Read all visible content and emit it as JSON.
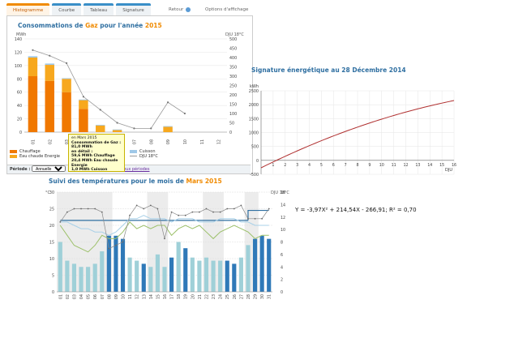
{
  "tabs": [
    "Histogramme",
    "Courbe",
    "Tableau",
    "Signature"
  ],
  "top_links": {
    "retour": "Retour",
    "options": "Options d'affichage"
  },
  "gas": {
    "title_pre": "Consommations de ",
    "title_accent": "Gaz",
    "title_mid": " pour l'année ",
    "title_year": "2015",
    "unit_left": "MWh",
    "unit_right": "DJU 18°C",
    "months": [
      "01",
      "02",
      "03",
      "04",
      "05",
      "06",
      "07",
      "08",
      "09",
      "10",
      "11",
      "12"
    ],
    "chauffage": [
      84,
      77,
      60,
      35,
      0,
      0,
      0,
      0,
      0,
      0,
      0,
      0
    ],
    "eau_chaude": [
      28,
      24,
      20,
      13,
      10,
      3,
      0,
      0,
      8,
      0,
      0,
      0
    ],
    "cuisson": [
      2,
      2,
      1,
      1,
      1,
      1,
      0,
      0,
      1,
      0,
      0,
      0
    ],
    "dju": [
      440,
      410,
      370,
      190,
      120,
      50,
      20,
      20,
      160,
      100,
      null,
      null
    ],
    "yleft_ticks": [
      "0",
      "20",
      "40",
      "60",
      "80",
      "100",
      "120",
      "140"
    ],
    "yright_ticks": [
      "0",
      "50",
      "100",
      "150",
      "200",
      "250",
      "300",
      "350",
      "400",
      "450",
      "500"
    ],
    "legend": {
      "chauffage": "Chauffage",
      "eau": "Eau chaude Energie",
      "cuisson": "Cuisson",
      "dju": "DJU 18°C"
    },
    "colors": {
      "chauffage": "#f07800",
      "eau": "#f7a81e",
      "cuisson": "#9fc8e8",
      "dju": "#999999"
    }
  },
  "tooltip": {
    "line1": "en Mars 2015",
    "line2": "Consommation de Gaz :",
    "line3": "81,0 MWh",
    "line4": "en détail :",
    "line5": "59,6 MWh Chauffage",
    "line6": "20,4 MWh Eau chaude",
    "line7": "Energie",
    "line8": "1,0 MWh Cuisson"
  },
  "bottombar": {
    "periode_label": "Période :",
    "periode_value": "Annuelle",
    "compare": "Comparer deux périodes"
  },
  "signature": {
    "title": "Signature énergétique au 28 Décembre 2014",
    "ylabel": "kWh",
    "xlabel": "DJU",
    "yticks": [
      "-500",
      "0",
      "500",
      "1000",
      "1500",
      "2000",
      "2500"
    ],
    "xticks": [
      "1",
      "2",
      "3",
      "4",
      "5",
      "6",
      "7",
      "8",
      "9",
      "10",
      "11",
      "12",
      "13",
      "14",
      "15",
      "16"
    ],
    "formula": "Y = -3,97X² + 214,54X - 266,91; R² = 0,70"
  },
  "temps": {
    "title_pre": "Suivi des températures pour le mois de ",
    "title_month": "Mars",
    "title_year": " 2015",
    "unit_left": "°C",
    "unit_right": "DJU 18°C",
    "days": [
      "01",
      "02",
      "03",
      "04",
      "05",
      "06",
      "07",
      "08",
      "09",
      "10",
      "11",
      "12",
      "13",
      "14",
      "15",
      "16",
      "17",
      "18",
      "19",
      "20",
      "21",
      "22",
      "23",
      "24",
      "25",
      "26",
      "27",
      "28",
      "29",
      "30",
      "31"
    ],
    "dju": [
      8,
      5,
      4.5,
      4,
      4,
      4.5,
      6.5,
      9,
      9,
      8.5,
      5.5,
      5,
      4.5,
      4,
      6,
      4,
      5.5,
      8,
      7,
      5.5,
      5,
      5.5,
      5,
      5,
      5,
      4.5,
      5.5,
      7.5,
      8.5,
      9,
      8.5
    ],
    "yleft_ticks": [
      "0",
      "5",
      "10",
      "15",
      "20",
      "25",
      "30"
    ],
    "yright_ticks": [
      "0",
      "2",
      "4",
      "6",
      "8",
      "10",
      "12",
      "14",
      "16"
    ]
  }
}
